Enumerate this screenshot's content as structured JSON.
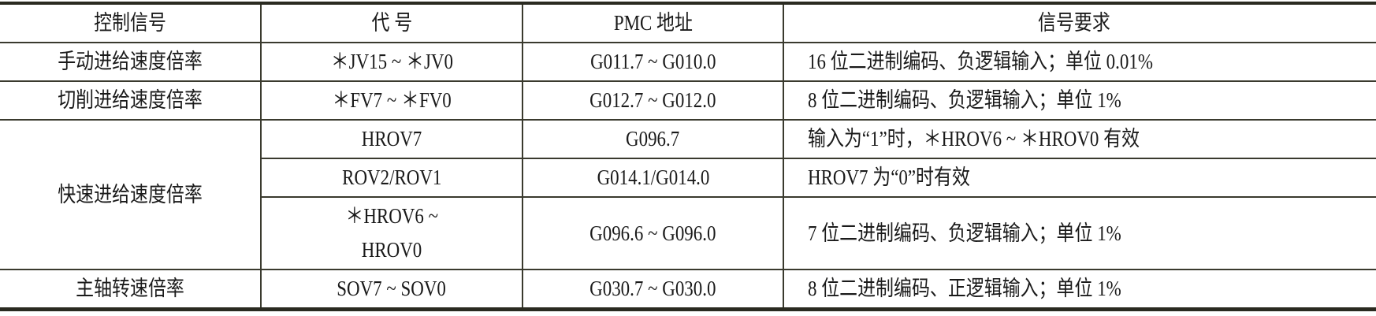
{
  "headers": [
    "控制信号",
    "代 号",
    "PMC 地址",
    "信号要求"
  ],
  "rows": [
    {
      "signal": "手动进给速度倍率",
      "code": "＊JV15 ~ ＊JV0",
      "address": "G011.7 ~ G010.0",
      "requirement": "16 位二进制编码、负逻辑输入；单位 0.01%"
    },
    {
      "signal": "切削进给速度倍率",
      "code": "＊FV7 ~ ＊FV0",
      "address": "G012.7 ~ G012.0",
      "requirement": "8 位二进制编码、负逻辑输入；单位 1%"
    },
    {
      "signal": "快速进给速度倍率",
      "code": "HROV7",
      "address": "G096.7",
      "requirement": "输入为“1”时，＊HROV6 ~ ＊HROV0 有效"
    },
    {
      "code": "ROV2/ROV1",
      "address": "G014.1/G014.0",
      "requirement": "HROV7 为“0”时有效"
    },
    {
      "code_line1": "＊HROV6 ~",
      "code_line2": "HROV0",
      "address": "G096.6 ~  G096.0",
      "requirement": "7 位二进制编码、负逻辑输入；单位 1%"
    },
    {
      "signal": "主轴转速倍率",
      "code": "SOV7 ~ SOV0",
      "address": "G030.7 ~ G030.0",
      "requirement": "8 位二进制编码、正逻辑输入；单位 1%"
    }
  ]
}
